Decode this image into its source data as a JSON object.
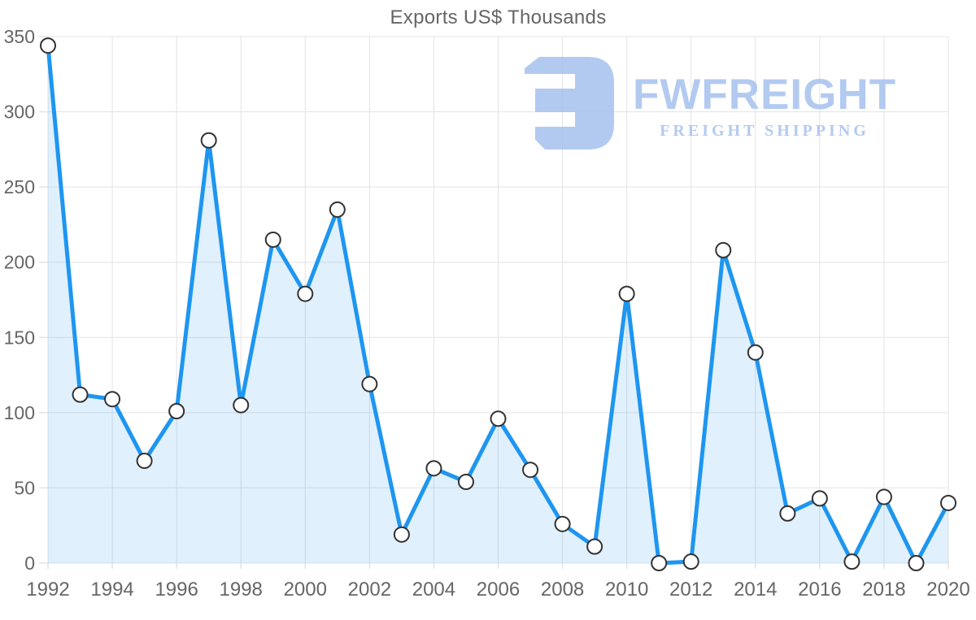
{
  "title": "Exports US$ Thousands",
  "watermark": {
    "brand": "FWFREIGHT",
    "tagline": "FREIGHT SHIPPING",
    "color": "#a9c3ee"
  },
  "chart_data": {
    "type": "area",
    "title": "Exports US$ Thousands",
    "xlabel": "",
    "ylabel": "",
    "x": [
      1992,
      1993,
      1994,
      1995,
      1996,
      1997,
      1998,
      1999,
      2000,
      2001,
      2002,
      2003,
      2004,
      2005,
      2006,
      2007,
      2008,
      2009,
      2010,
      2011,
      2012,
      2013,
      2014,
      2015,
      2016,
      2017,
      2018,
      2019,
      2020
    ],
    "series": [
      {
        "name": "Exports US$ Thousands",
        "values": [
          344,
          112,
          109,
          68,
          101,
          281,
          105,
          215,
          179,
          235,
          119,
          19,
          63,
          54,
          96,
          62,
          26,
          11,
          179,
          0,
          1,
          208,
          140,
          33,
          43,
          1,
          44,
          0,
          40
        ]
      }
    ],
    "ylim": [
      0,
      350
    ],
    "ytick_step": 50,
    "xtick_step": 2,
    "grid": true,
    "legend": "none",
    "colors": {
      "line": "#1e96f0",
      "fill": "rgba(33, 150, 243, 0.14)",
      "grid": "#e3e3e3",
      "axis_labels": "#666666",
      "marker_fill": "#ffffff",
      "marker_stroke": "#333333"
    }
  }
}
